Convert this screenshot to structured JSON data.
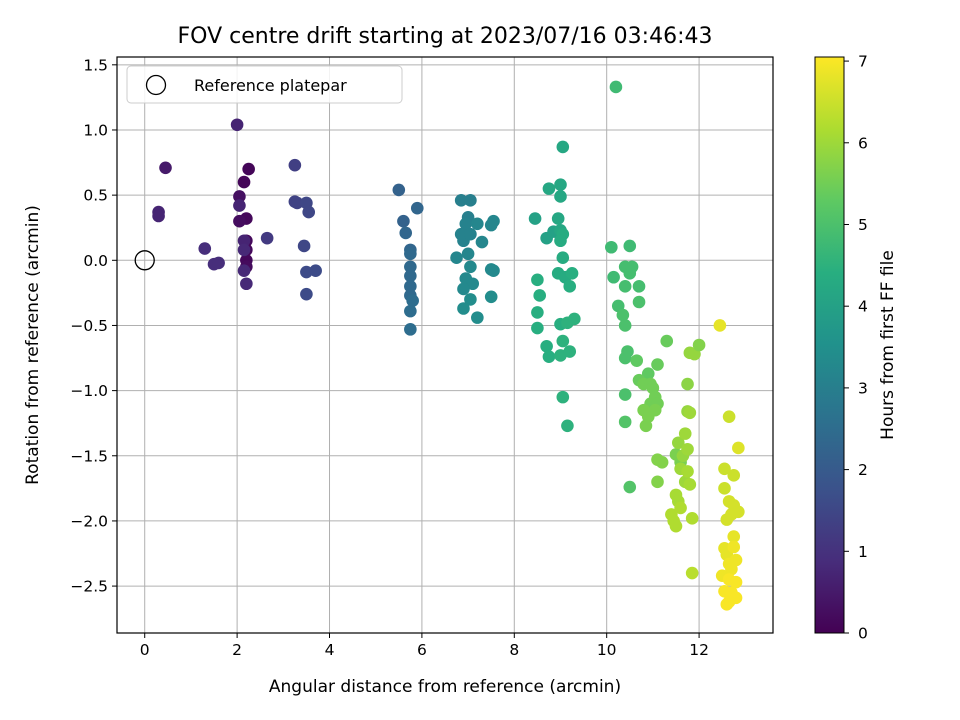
{
  "chart_data": {
    "type": "scatter",
    "title": "FOV centre drift starting at 2023/07/16 03:46:43",
    "xlabel": "Angular distance from reference (arcmin)",
    "ylabel": "Rotation from reference (arcmin)",
    "xlim": [
      -0.6,
      13.6
    ],
    "ylim": [
      -2.86,
      1.56
    ],
    "xticks": [
      0,
      2,
      4,
      6,
      8,
      10,
      12
    ],
    "yticks": [
      1.5,
      1.0,
      0.5,
      0.0,
      -0.5,
      -1.0,
      -1.5,
      -2.0,
      -2.5
    ],
    "grid": true,
    "legend": {
      "placement": "top-left",
      "entries": [
        "Reference platepar"
      ]
    },
    "reference_point": {
      "x": 0,
      "y": 0
    },
    "colorbar": {
      "label": "Hours from first FF file",
      "range": [
        0,
        7.05
      ],
      "ticks": [
        0,
        1,
        2,
        3,
        4,
        5,
        6,
        7
      ],
      "colormap": "viridis"
    },
    "points": [
      [
        2.15,
        0.6,
        0.1
      ],
      [
        2.25,
        0.7,
        0.1
      ],
      [
        2.2,
        0.32,
        0.15
      ],
      [
        2.2,
        0.15,
        0.15
      ],
      [
        2.2,
        0.08,
        0.15
      ],
      [
        2.2,
        0.0,
        0.15
      ],
      [
        2.2,
        -0.05,
        0.2
      ],
      [
        2.05,
        0.3,
        0.25
      ],
      [
        2.05,
        0.49,
        0.3
      ],
      [
        0.45,
        0.71,
        0.5
      ],
      [
        0.3,
        0.37,
        0.7
      ],
      [
        0.3,
        0.34,
        0.7
      ],
      [
        2.0,
        1.04,
        0.7
      ],
      [
        2.05,
        0.42,
        0.7
      ],
      [
        2.15,
        0.15,
        0.7
      ],
      [
        2.15,
        0.08,
        0.8
      ],
      [
        2.15,
        -0.08,
        0.8
      ],
      [
        2.2,
        -0.18,
        0.8
      ],
      [
        1.3,
        0.09,
        0.9
      ],
      [
        1.5,
        -0.03,
        0.9
      ],
      [
        1.6,
        -0.02,
        0.9
      ],
      [
        2.65,
        0.17,
        1.2
      ],
      [
        3.25,
        0.73,
        1.3
      ],
      [
        3.25,
        0.45,
        1.4
      ],
      [
        3.3,
        0.44,
        1.4
      ],
      [
        3.5,
        0.44,
        1.5
      ],
      [
        3.55,
        0.37,
        1.5
      ],
      [
        3.45,
        0.11,
        1.5
      ],
      [
        3.5,
        -0.09,
        1.6
      ],
      [
        3.7,
        -0.08,
        1.6
      ],
      [
        3.5,
        -0.26,
        1.6
      ],
      [
        5.5,
        0.54,
        2.2
      ],
      [
        5.6,
        0.3,
        2.2
      ],
      [
        5.65,
        0.21,
        2.3
      ],
      [
        5.9,
        0.4,
        2.3
      ],
      [
        5.75,
        0.08,
        2.3
      ],
      [
        5.75,
        0.05,
        2.4
      ],
      [
        5.75,
        -0.05,
        2.4
      ],
      [
        5.75,
        -0.12,
        2.4
      ],
      [
        5.75,
        -0.2,
        2.4
      ],
      [
        5.75,
        -0.27,
        2.4
      ],
      [
        5.8,
        -0.31,
        2.5
      ],
      [
        5.75,
        -0.39,
        2.5
      ],
      [
        5.75,
        -0.53,
        2.5
      ],
      [
        6.85,
        0.46,
        3.0
      ],
      [
        7.05,
        0.46,
        3.0
      ],
      [
        7.0,
        0.33,
        3.0
      ],
      [
        6.95,
        0.28,
        3.1
      ],
      [
        6.85,
        0.2,
        3.1
      ],
      [
        6.9,
        0.15,
        3.1
      ],
      [
        7.05,
        0.2,
        3.1
      ],
      [
        7.2,
        0.28,
        3.2
      ],
      [
        7.0,
        0.05,
        3.2
      ],
      [
        7.3,
        0.14,
        3.2
      ],
      [
        7.55,
        0.3,
        3.2
      ],
      [
        7.5,
        0.27,
        3.2
      ],
      [
        6.75,
        0.02,
        3.2
      ],
      [
        7.05,
        -0.05,
        3.3
      ],
      [
        6.95,
        -0.14,
        3.3
      ],
      [
        7.1,
        -0.18,
        3.3
      ],
      [
        6.9,
        -0.22,
        3.3
      ],
      [
        7.5,
        -0.07,
        3.3
      ],
      [
        7.55,
        -0.08,
        3.3
      ],
      [
        7.05,
        -0.3,
        3.4
      ],
      [
        6.9,
        -0.37,
        3.4
      ],
      [
        7.2,
        -0.44,
        3.4
      ],
      [
        7.5,
        -0.28,
        3.4
      ],
      [
        8.45,
        0.32,
        4.0
      ],
      [
        8.7,
        0.17,
        4.0
      ],
      [
        8.85,
        0.22,
        4.0
      ],
      [
        8.75,
        0.55,
        4.2
      ],
      [
        9.0,
        0.58,
        4.2
      ],
      [
        9.05,
        0.87,
        4.2
      ],
      [
        9.0,
        0.49,
        4.2
      ],
      [
        8.95,
        0.32,
        4.2
      ],
      [
        9.0,
        0.23,
        4.2
      ],
      [
        9.05,
        0.2,
        4.3
      ],
      [
        9.0,
        0.15,
        4.3
      ],
      [
        9.05,
        0.02,
        4.3
      ],
      [
        8.95,
        -0.1,
        4.3
      ],
      [
        9.1,
        -0.13,
        4.3
      ],
      [
        9.25,
        -0.1,
        4.4
      ],
      [
        9.2,
        -0.2,
        4.4
      ],
      [
        8.5,
        -0.15,
        4.4
      ],
      [
        8.55,
        -0.27,
        4.4
      ],
      [
        8.5,
        -0.4,
        4.4
      ],
      [
        8.5,
        -0.52,
        4.4
      ],
      [
        8.7,
        -0.66,
        4.4
      ],
      [
        8.75,
        -0.74,
        4.4
      ],
      [
        9.0,
        -0.49,
        4.4
      ],
      [
        9.15,
        -0.48,
        4.5
      ],
      [
        9.3,
        -0.45,
        4.5
      ],
      [
        9.05,
        -0.62,
        4.5
      ],
      [
        9.0,
        -0.73,
        4.5
      ],
      [
        9.2,
        -0.7,
        4.5
      ],
      [
        9.05,
        -1.05,
        4.5
      ],
      [
        9.15,
        -1.27,
        4.5
      ],
      [
        10.2,
        1.33,
        4.8
      ],
      [
        10.1,
        0.1,
        4.8
      ],
      [
        10.5,
        0.11,
        4.8
      ],
      [
        10.15,
        -0.13,
        4.8
      ],
      [
        10.4,
        -0.05,
        4.9
      ],
      [
        10.5,
        -0.1,
        4.9
      ],
      [
        10.55,
        -0.05,
        4.9
      ],
      [
        10.7,
        -0.2,
        4.9
      ],
      [
        10.4,
        -0.2,
        4.9
      ],
      [
        10.25,
        -0.35,
        4.9
      ],
      [
        10.7,
        -0.32,
        5.0
      ],
      [
        10.35,
        -0.42,
        5.0
      ],
      [
        10.4,
        -0.5,
        5.0
      ],
      [
        10.45,
        -0.7,
        5.0
      ],
      [
        10.4,
        -0.75,
        5.0
      ],
      [
        10.4,
        -1.03,
        5.0
      ],
      [
        10.4,
        -1.24,
        5.1
      ],
      [
        10.5,
        -1.74,
        5.1
      ],
      [
        10.65,
        -0.77,
        5.3
      ],
      [
        10.9,
        -0.87,
        5.3
      ],
      [
        11.1,
        -0.8,
        5.4
      ],
      [
        11.3,
        -0.62,
        5.4
      ],
      [
        10.7,
        -0.92,
        5.4
      ],
      [
        10.8,
        -0.95,
        5.5
      ],
      [
        10.95,
        -0.95,
        5.5
      ],
      [
        11.0,
        -0.98,
        5.5
      ],
      [
        11.05,
        -1.05,
        5.5
      ],
      [
        10.95,
        -1.1,
        5.5
      ],
      [
        11.1,
        -1.1,
        5.5
      ],
      [
        10.8,
        -1.15,
        5.6
      ],
      [
        10.9,
        -1.2,
        5.6
      ],
      [
        10.85,
        -1.27,
        5.6
      ],
      [
        11.05,
        -1.15,
        5.6
      ],
      [
        11.1,
        -1.53,
        5.7
      ],
      [
        11.2,
        -1.55,
        5.7
      ],
      [
        11.1,
        -1.7,
        5.7
      ],
      [
        11.5,
        -1.49,
        5.6
      ],
      [
        11.6,
        -1.55,
        5.6
      ],
      [
        11.75,
        -0.95,
        5.8
      ],
      [
        11.8,
        -0.71,
        5.9
      ],
      [
        11.9,
        -0.72,
        5.9
      ],
      [
        12.0,
        -0.65,
        5.7
      ],
      [
        11.75,
        -1.16,
        5.9
      ],
      [
        11.8,
        -1.17,
        6.0
      ],
      [
        11.55,
        -1.4,
        5.9
      ],
      [
        11.65,
        -1.5,
        5.9
      ],
      [
        11.7,
        -1.33,
        6.0
      ],
      [
        11.75,
        -1.45,
        6.0
      ],
      [
        11.6,
        -1.6,
        6.0
      ],
      [
        11.7,
        -1.7,
        6.0
      ],
      [
        11.75,
        -1.62,
        6.1
      ],
      [
        11.8,
        -1.72,
        6.1
      ],
      [
        11.5,
        -1.8,
        6.1
      ],
      [
        11.55,
        -1.85,
        6.1
      ],
      [
        11.6,
        -1.9,
        6.2
      ],
      [
        11.4,
        -1.95,
        6.2
      ],
      [
        11.45,
        -2.0,
        6.2
      ],
      [
        11.5,
        -2.04,
        6.2
      ],
      [
        11.85,
        -1.98,
        6.2
      ],
      [
        11.85,
        -2.4,
        6.3
      ],
      [
        12.65,
        -1.2,
        6.5
      ],
      [
        12.55,
        -1.6,
        6.5
      ],
      [
        12.75,
        -1.65,
        6.5
      ],
      [
        12.55,
        -1.75,
        6.5
      ],
      [
        12.65,
        -1.85,
        6.6
      ],
      [
        12.75,
        -1.88,
        6.6
      ],
      [
        12.7,
        -1.95,
        6.6
      ],
      [
        12.6,
        -1.99,
        6.6
      ],
      [
        12.85,
        -1.93,
        6.6
      ],
      [
        12.85,
        -1.44,
        6.7
      ],
      [
        12.45,
        -0.5,
        6.8
      ],
      [
        12.55,
        -2.21,
        6.8
      ],
      [
        12.6,
        -2.26,
        6.8
      ],
      [
        12.75,
        -2.12,
        6.8
      ],
      [
        12.75,
        -2.2,
        6.9
      ],
      [
        12.65,
        -2.33,
        6.9
      ],
      [
        12.8,
        -2.3,
        6.9
      ],
      [
        12.7,
        -2.37,
        6.9
      ],
      [
        12.5,
        -2.42,
        6.9
      ],
      [
        12.65,
        -2.45,
        7.0
      ],
      [
        12.8,
        -2.47,
        7.0
      ],
      [
        12.55,
        -2.54,
        7.0
      ],
      [
        12.7,
        -2.55,
        7.0
      ],
      [
        12.8,
        -2.59,
        7.0
      ],
      [
        12.6,
        -2.64,
        7.0
      ],
      [
        12.65,
        -2.62,
        7.0
      ]
    ]
  }
}
